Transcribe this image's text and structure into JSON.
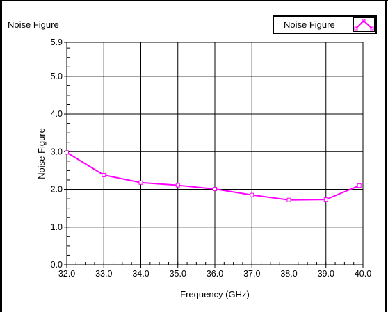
{
  "panel_title": "Noise Figure",
  "legend": {
    "label": "Noise Figure",
    "icon": "line-with-markers"
  },
  "colors": {
    "series": "#ff00ff",
    "grid": "#000000",
    "background": "#ffffff"
  },
  "chart_data": {
    "type": "line",
    "title": "Noise Figure",
    "xlabel": "Frequency (GHz)",
    "ylabel": "Noise Figure",
    "xlim": [
      32.0,
      40.0
    ],
    "ylim": [
      0.0,
      5.9
    ],
    "x_ticks": [
      "32.0",
      "33.0",
      "34.0",
      "35.0",
      "36.0",
      "37.0",
      "38.0",
      "39.0",
      "40.0"
    ],
    "y_ticks": [
      "0.0",
      "1.0",
      "2.0",
      "3.0",
      "4.0",
      "5.0",
      "5.9"
    ],
    "grid": true,
    "legend_position": "top-right",
    "series": [
      {
        "name": "Noise Figure",
        "color": "#ff00ff",
        "x": [
          32.0,
          33.0,
          34.0,
          35.0,
          36.0,
          37.0,
          38.0,
          39.0,
          39.9
        ],
        "y": [
          2.98,
          2.38,
          2.18,
          2.11,
          2.01,
          1.85,
          1.72,
          1.73,
          2.1
        ]
      }
    ]
  }
}
